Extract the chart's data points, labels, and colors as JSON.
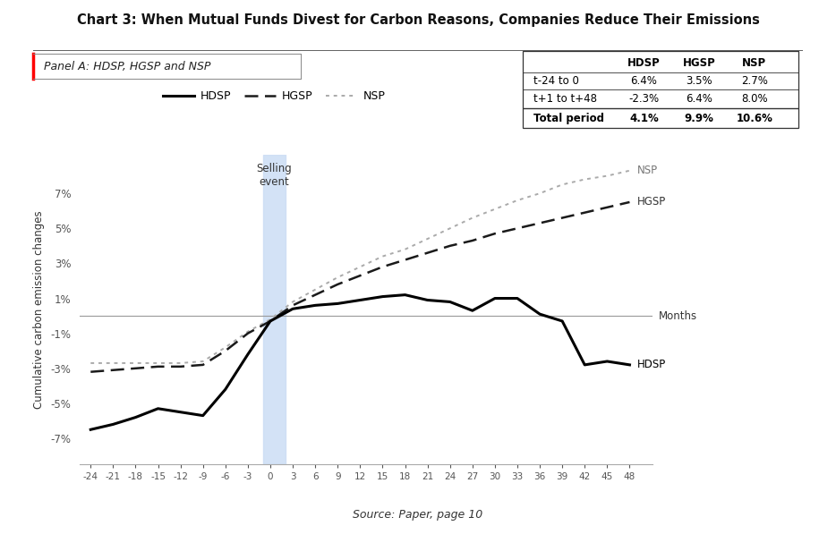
{
  "title": "Chart 3: When Mutual Funds Divest for Carbon Reasons, Companies Reduce Their Emissions",
  "panel_label": "Panel A: HDSP, HGSP and NSP",
  "ylabel": "Cumulative carbon emission changes",
  "source": "Source: Paper, page 10",
  "selling_event_label": "Selling\nevent",
  "x_ticks": [
    -24,
    -21,
    -18,
    -15,
    -12,
    -9,
    -6,
    -3,
    0,
    3,
    6,
    9,
    12,
    15,
    18,
    21,
    24,
    27,
    30,
    33,
    36,
    39,
    42,
    45,
    48
  ],
  "ytick_labels": [
    "-7%",
    "-5%",
    "-3%",
    "-1%",
    "1%",
    "3%",
    "5%",
    "7%"
  ],
  "ytick_values": [
    -0.07,
    -0.05,
    -0.03,
    -0.01,
    0.01,
    0.03,
    0.05,
    0.07
  ],
  "ylim": [
    -0.085,
    0.092
  ],
  "xlim": [
    -25.5,
    51
  ],
  "hdsp_x": [
    -24,
    -21,
    -18,
    -15,
    -12,
    -9,
    -6,
    -3,
    0,
    3,
    6,
    9,
    12,
    15,
    18,
    21,
    24,
    27,
    30,
    33,
    36,
    39,
    42,
    45,
    48
  ],
  "hdsp_y": [
    -0.065,
    -0.062,
    -0.058,
    -0.053,
    -0.055,
    -0.057,
    -0.042,
    -0.022,
    -0.003,
    0.004,
    0.006,
    0.007,
    0.009,
    0.011,
    0.012,
    0.009,
    0.008,
    0.003,
    0.01,
    0.01,
    0.001,
    -0.003,
    -0.028,
    -0.026,
    -0.028
  ],
  "hgsp_x": [
    -24,
    -21,
    -18,
    -15,
    -12,
    -9,
    -6,
    -3,
    0,
    3,
    6,
    9,
    12,
    15,
    18,
    21,
    24,
    27,
    30,
    33,
    36,
    39,
    42,
    45,
    48
  ],
  "hgsp_y": [
    -0.032,
    -0.031,
    -0.03,
    -0.029,
    -0.029,
    -0.028,
    -0.02,
    -0.01,
    -0.003,
    0.006,
    0.012,
    0.018,
    0.023,
    0.028,
    0.032,
    0.036,
    0.04,
    0.043,
    0.047,
    0.05,
    0.053,
    0.056,
    0.059,
    0.062,
    0.065
  ],
  "nsp_x": [
    -24,
    -21,
    -18,
    -15,
    -12,
    -9,
    -6,
    -3,
    0,
    3,
    6,
    9,
    12,
    15,
    18,
    21,
    24,
    27,
    30,
    33,
    36,
    39,
    42,
    45,
    48
  ],
  "nsp_y": [
    -0.027,
    -0.027,
    -0.027,
    -0.027,
    -0.027,
    -0.026,
    -0.018,
    -0.009,
    -0.002,
    0.008,
    0.015,
    0.022,
    0.028,
    0.034,
    0.038,
    0.044,
    0.05,
    0.056,
    0.061,
    0.066,
    0.07,
    0.075,
    0.078,
    0.08,
    0.083
  ],
  "table_rows": [
    "t-24 to 0",
    "t+1 to t+48",
    "Total period"
  ],
  "table_cols": [
    "",
    "HDSP",
    "HGSP",
    "NSP"
  ],
  "table_values": [
    [
      "6.4%",
      "3.5%",
      "2.7%"
    ],
    [
      "-2.3%",
      "6.4%",
      "8.0%"
    ],
    [
      "4.1%",
      "9.9%",
      "10.6%"
    ]
  ],
  "hdsp_color": "#000000",
  "hgsp_color": "#1a1a1a",
  "nsp_color": "#aaaaaa",
  "selling_band_color": "#ccddf5",
  "zero_line_color": "#999999",
  "background_color": "#ffffff"
}
